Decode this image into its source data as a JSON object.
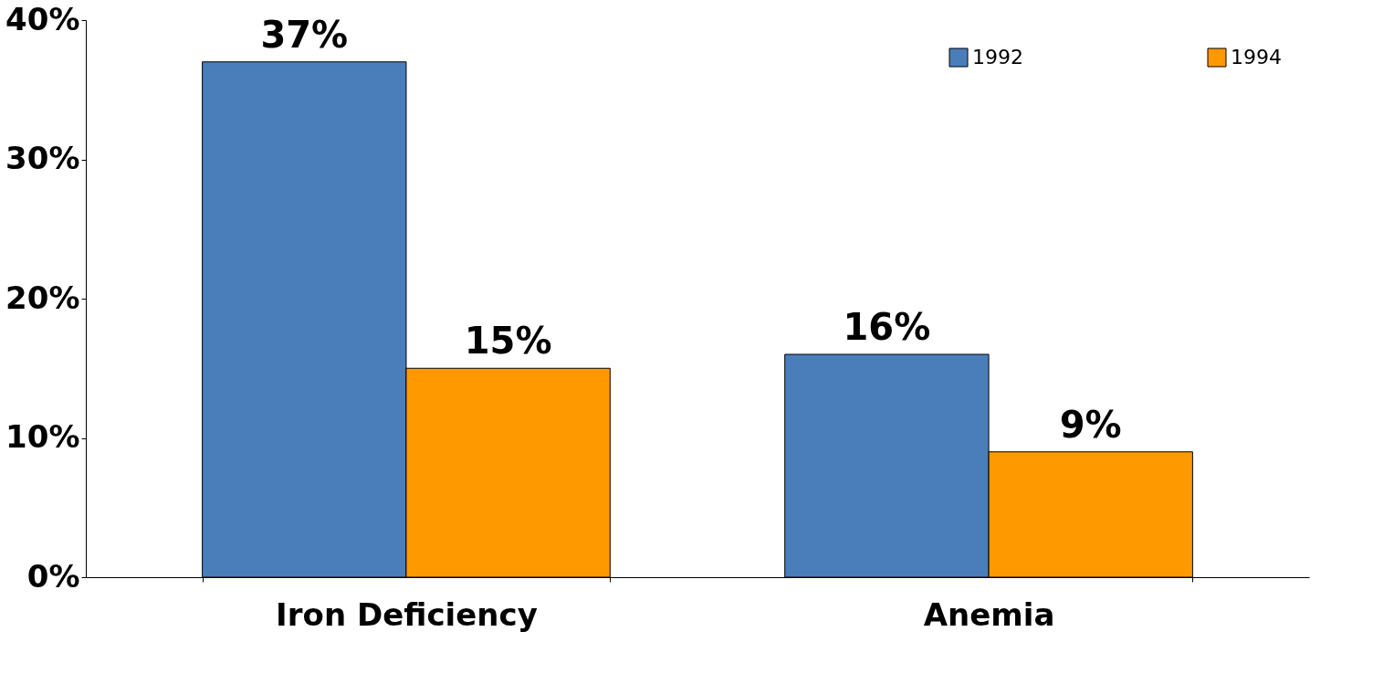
{
  "chart_data": {
    "type": "bar",
    "categories": [
      "Iron Deficiency",
      "Anemia"
    ],
    "series": [
      {
        "name": "1992",
        "color": "#4a7ebb",
        "values": [
          37,
          16
        ],
        "value_labels": [
          "37%",
          "16%"
        ]
      },
      {
        "name": "1994",
        "color": "#ff9900",
        "values": [
          15,
          9
        ],
        "value_labels": [
          "15%",
          "9%"
        ]
      }
    ],
    "ylim": [
      0,
      40
    ],
    "yticks": [
      {
        "value": 0,
        "label": "0%"
      },
      {
        "value": 10,
        "label": "10%"
      },
      {
        "value": 20,
        "label": "20%"
      },
      {
        "value": 30,
        "label": "30%"
      },
      {
        "value": 40,
        "label": "40%"
      }
    ],
    "grid": false,
    "legend": "top right"
  }
}
